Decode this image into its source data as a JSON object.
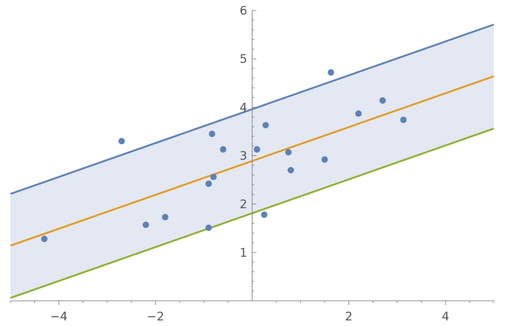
{
  "chart_data": {
    "type": "scatter",
    "title": "",
    "xlabel": "",
    "ylabel": "",
    "xlim": [
      -5,
      5
    ],
    "ylim": [
      0,
      6
    ],
    "grid": false,
    "x_ticks": [
      -4,
      -2,
      2,
      4
    ],
    "x_tick_labels": [
      "−4",
      "−2",
      "2",
      "4"
    ],
    "y_ticks": [
      1,
      2,
      3,
      4,
      5,
      6
    ],
    "y_tick_labels": [
      "1",
      "2",
      "3",
      "4",
      "5",
      "6"
    ],
    "points": [
      {
        "x": -4.3,
        "y": 1.28
      },
      {
        "x": -2.7,
        "y": 3.3
      },
      {
        "x": -2.2,
        "y": 1.57
      },
      {
        "x": -1.8,
        "y": 1.73
      },
      {
        "x": -0.9,
        "y": 2.42
      },
      {
        "x": -0.9,
        "y": 1.51
      },
      {
        "x": -0.83,
        "y": 3.45
      },
      {
        "x": -0.8,
        "y": 2.56
      },
      {
        "x": -0.6,
        "y": 3.13
      },
      {
        "x": 0.1,
        "y": 3.13
      },
      {
        "x": 0.25,
        "y": 1.78
      },
      {
        "x": 0.28,
        "y": 3.63
      },
      {
        "x": 0.75,
        "y": 3.07
      },
      {
        "x": 0.8,
        "y": 2.7
      },
      {
        "x": 1.5,
        "y": 2.92
      },
      {
        "x": 1.63,
        "y": 4.72
      },
      {
        "x": 2.2,
        "y": 3.87
      },
      {
        "x": 2.7,
        "y": 4.14
      },
      {
        "x": 3.13,
        "y": 3.74
      }
    ],
    "lines": [
      {
        "role": "upper",
        "color": "#5E81B5",
        "intercept": 3.96,
        "slope": 0.35
      },
      {
        "role": "fit",
        "color": "#E19C24",
        "intercept": 2.89,
        "slope": 0.35
      },
      {
        "role": "lower",
        "color": "#8FB032",
        "intercept": 1.81,
        "slope": 0.35
      }
    ],
    "band_fill": "#E3E8F2",
    "point_color": "#5E81B5"
  }
}
